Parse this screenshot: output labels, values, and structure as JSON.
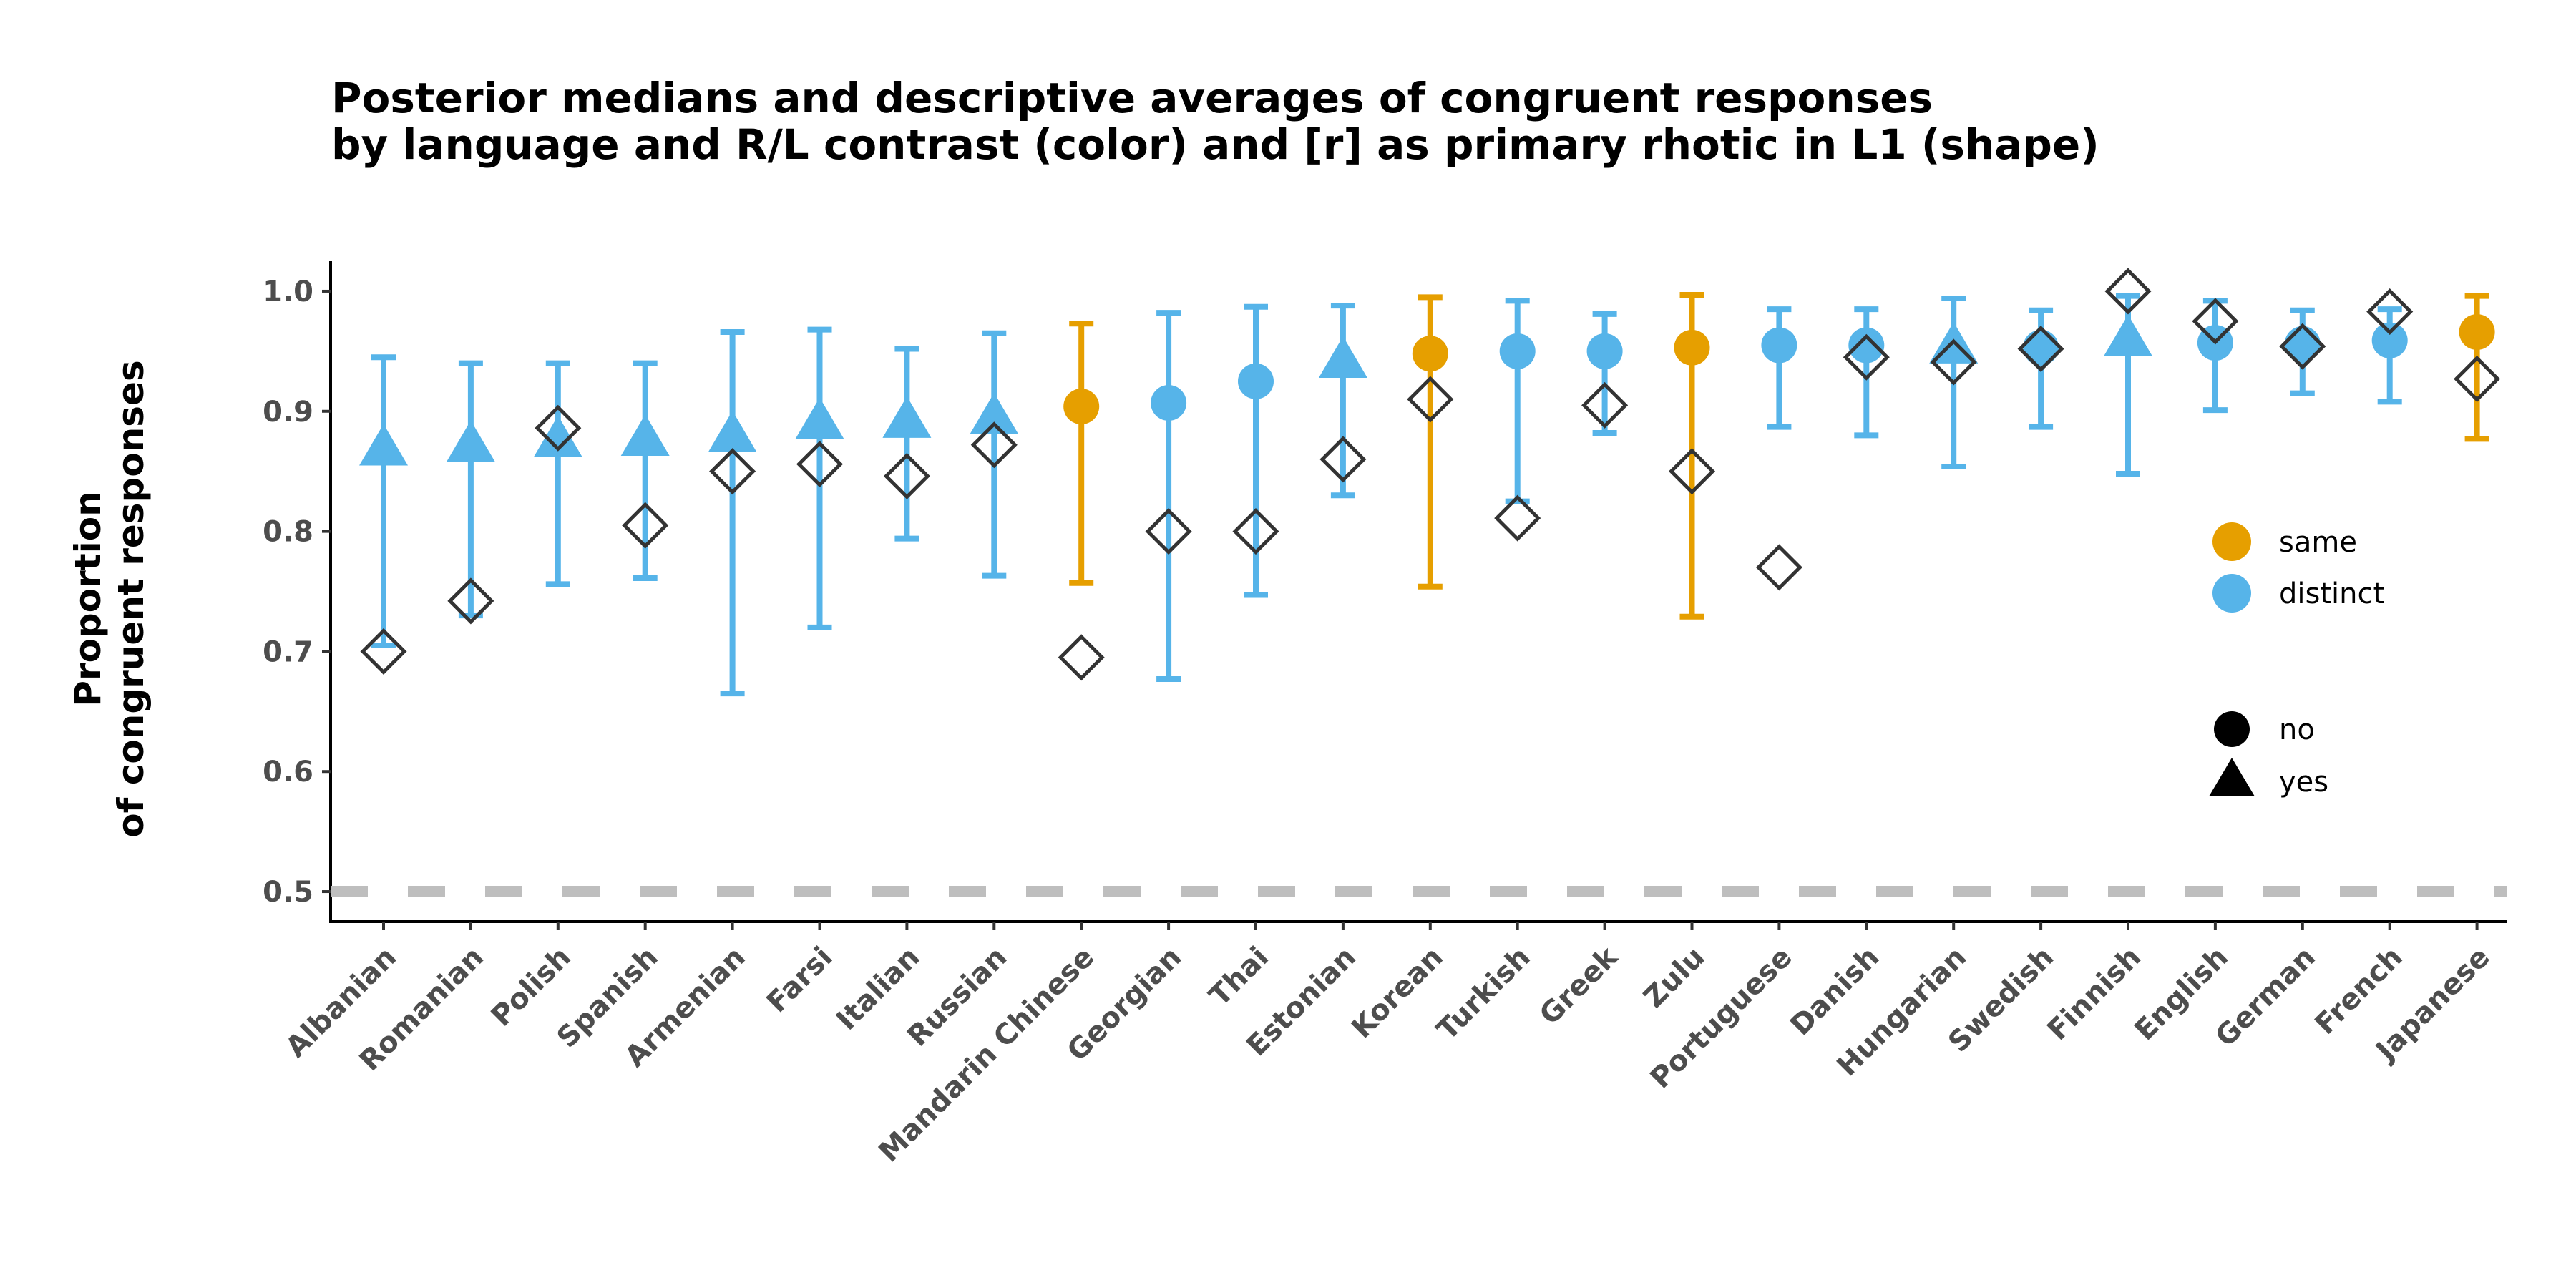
{
  "chart_data": {
    "type": "scatter",
    "title_line1": "Posterior medians and descriptive averages of congruent responses",
    "title_line2": "by language and R/L contrast (color) and [r] as primary rhotic in L1 (shape)",
    "xlabel": "",
    "ylabel_line1": "Proportion",
    "ylabel_line2": "of congruent responses",
    "ylim": [
      0.475,
      1.025
    ],
    "yticks": [
      "0.5",
      "0.6",
      "0.7",
      "0.8",
      "0.9",
      "1.0"
    ],
    "reference_line": 0.5,
    "reference_line_color": "#bebebe",
    "colors": {
      "same": "#E69F00",
      "distinct": "#56B4E9",
      "descriptive": "#333333"
    },
    "categories": [
      "Albanian",
      "Romanian",
      "Polish",
      "Spanish",
      "Armenian",
      "Farsi",
      "Italian",
      "Russian",
      "Mandarin Chinese",
      "Georgian",
      "Thai",
      "Estonian",
      "Korean",
      "Turkish",
      "Greek",
      "Zulu",
      "Portuguese",
      "Danish",
      "Hungarian",
      "Swedish",
      "Finnish",
      "English",
      "German",
      "French",
      "Japanese"
    ],
    "median": [
      0.868,
      0.871,
      0.875,
      0.876,
      0.879,
      0.89,
      0.891,
      0.894,
      0.904,
      0.907,
      0.925,
      0.941,
      0.948,
      0.95,
      0.95,
      0.953,
      0.955,
      0.955,
      0.953,
      0.953,
      0.959,
      0.957,
      0.956,
      0.959,
      0.966
    ],
    "lower": [
      0.705,
      0.73,
      0.756,
      0.761,
      0.665,
      0.72,
      0.794,
      0.763,
      0.757,
      0.677,
      0.747,
      0.83,
      0.754,
      0.825,
      0.882,
      0.729,
      0.887,
      0.88,
      0.854,
      0.887,
      0.848,
      0.901,
      0.915,
      0.908,
      0.877
    ],
    "upper": [
      0.945,
      0.94,
      0.94,
      0.94,
      0.966,
      0.968,
      0.952,
      0.965,
      0.973,
      0.982,
      0.987,
      0.988,
      0.995,
      0.992,
      0.981,
      0.997,
      0.985,
      0.985,
      0.994,
      0.984,
      0.996,
      0.992,
      0.984,
      0.985,
      0.996
    ],
    "descriptive": [
      0.7,
      0.742,
      0.886,
      0.805,
      0.85,
      0.856,
      0.846,
      0.872,
      0.695,
      0.8,
      0.8,
      0.86,
      0.91,
      0.811,
      0.905,
      0.85,
      0.77,
      0.945,
      0.941,
      0.952,
      1.0,
      0.975,
      0.954,
      0.983,
      0.927
    ],
    "rl_contrast": [
      "distinct",
      "distinct",
      "distinct",
      "distinct",
      "distinct",
      "distinct",
      "distinct",
      "distinct",
      "same",
      "distinct",
      "distinct",
      "distinct",
      "same",
      "distinct",
      "distinct",
      "same",
      "distinct",
      "distinct",
      "distinct",
      "distinct",
      "distinct",
      "distinct",
      "distinct",
      "distinct",
      "same"
    ],
    "r_primary_rhotic": [
      "yes",
      "yes",
      "yes",
      "yes",
      "yes",
      "yes",
      "yes",
      "yes",
      "no",
      "no",
      "no",
      "yes",
      "no",
      "no",
      "no",
      "no",
      "no",
      "no",
      "yes",
      "no",
      "yes",
      "no",
      "no",
      "no",
      "no"
    ],
    "legend_color": [
      {
        "key": "same",
        "label": "same"
      },
      {
        "key": "distinct",
        "label": "distinct"
      }
    ],
    "legend_shape": [
      {
        "key": "no",
        "label": "no",
        "shape": "circle"
      },
      {
        "key": "yes",
        "label": "yes",
        "shape": "triangle"
      }
    ],
    "legend_position": "right",
    "grid": false
  }
}
